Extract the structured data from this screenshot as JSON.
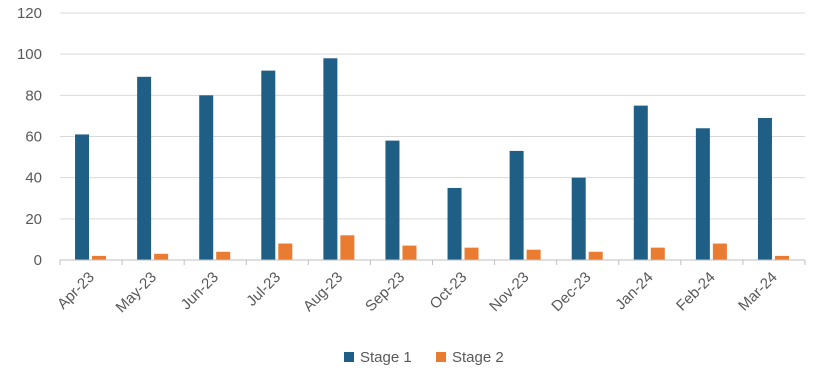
{
  "chart_data": {
    "type": "bar",
    "categories": [
      "Apr-23",
      "May-23",
      "Jun-23",
      "Jul-23",
      "Aug-23",
      "Sep-23",
      "Oct-23",
      "Nov-23",
      "Dec-23",
      "Jan-24",
      "Feb-24",
      "Mar-24"
    ],
    "series": [
      {
        "name": "Stage 1",
        "color": "#1f5f86",
        "values": [
          61,
          89,
          80,
          92,
          98,
          58,
          35,
          53,
          40,
          75,
          64,
          69
        ]
      },
      {
        "name": "Stage 2",
        "color": "#e97c30",
        "values": [
          2,
          3,
          4,
          8,
          12,
          7,
          6,
          5,
          4,
          6,
          8,
          2
        ]
      }
    ],
    "title": "",
    "xlabel": "",
    "ylabel": "",
    "ylim": [
      0,
      120
    ],
    "yticks": [
      0,
      20,
      40,
      60,
      80,
      100,
      120
    ],
    "grid": true,
    "legend_position": "bottom"
  }
}
